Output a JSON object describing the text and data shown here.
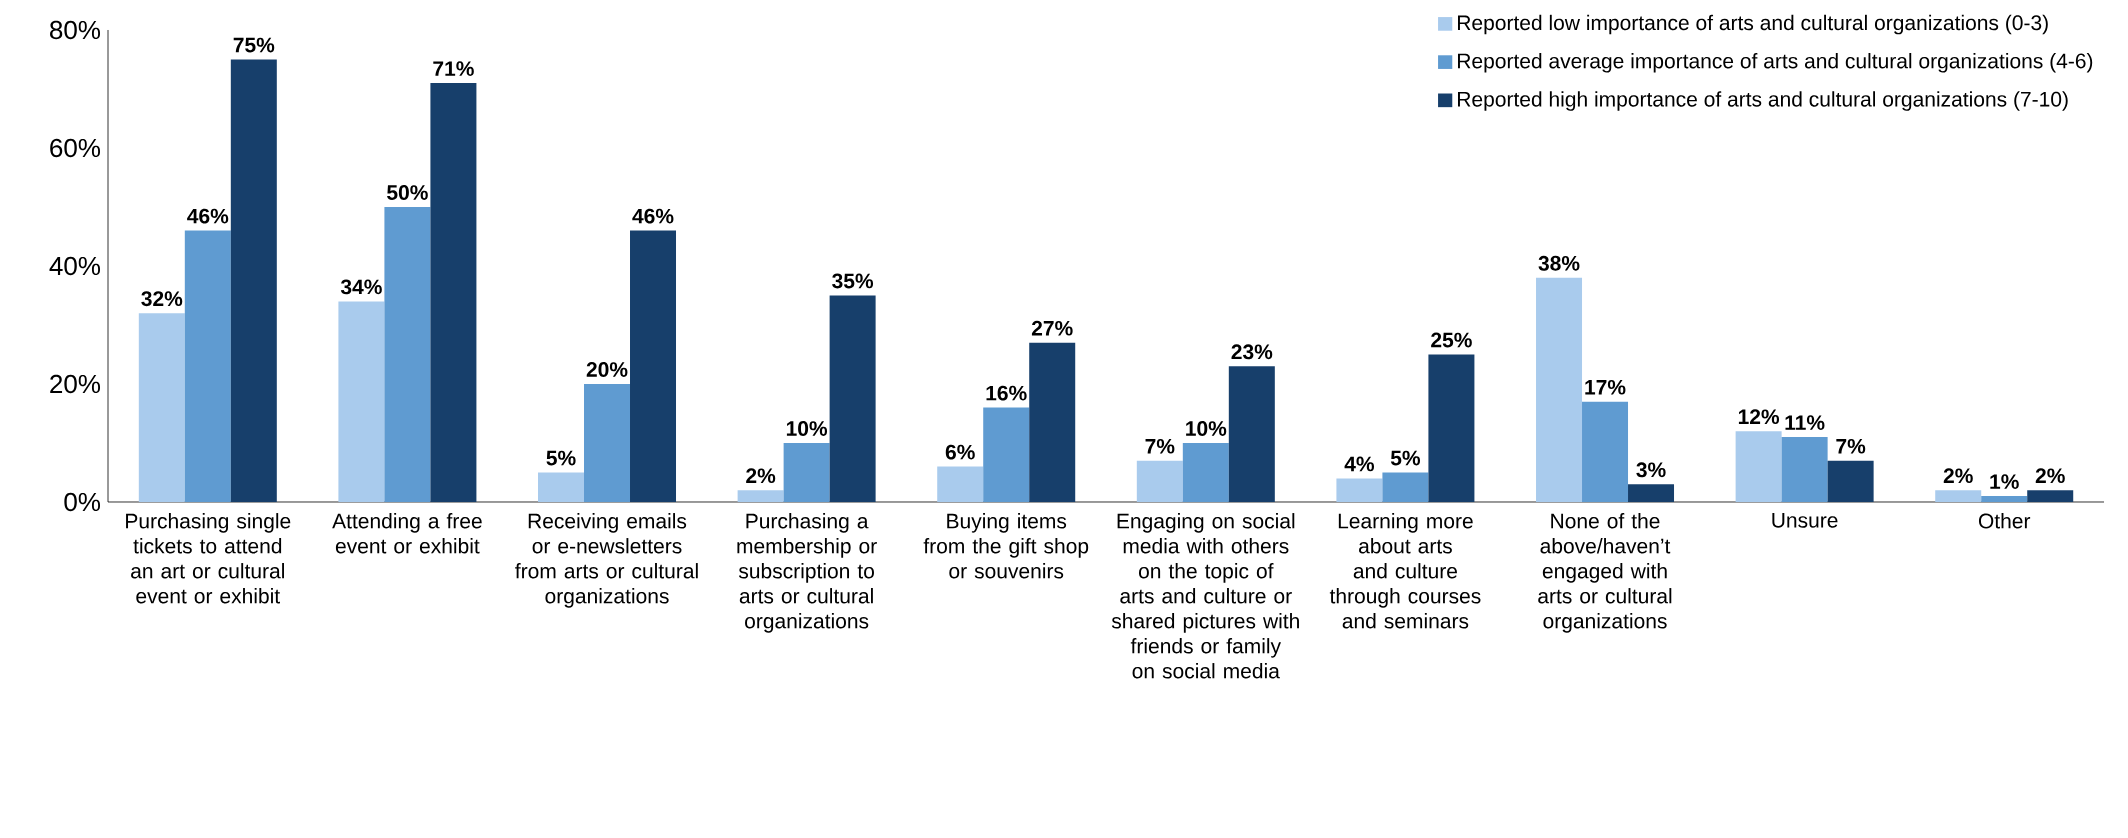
{
  "chart_data": {
    "type": "bar",
    "categories": [
      "Purchasing single tickets to attend an art or cultural event or exhibit",
      "Attending a free event or exhibit",
      "Receiving emails or e-newsletters from arts or cultural organizations",
      "Purchasing a membership or subscription to arts or cultural organizations",
      "Buying items from the gift shop or souvenirs",
      "Engaging on social media with others on the topic of arts and culture or shared pictures with friends or family on social media",
      "Learning more about arts and culture through courses and seminars",
      "None of the above/haven’t engaged with arts or cultural organizations",
      "Unsure",
      "Other"
    ],
    "series": [
      {
        "name": "Reported low importance of arts and cultural organizations (0-3)",
        "color": "#a9cbed",
        "values": [
          32,
          34,
          5,
          2,
          6,
          7,
          4,
          38,
          12,
          2
        ],
        "value_labels": [
          "32%",
          "34%",
          "5%",
          "2%",
          "6%",
          "7%",
          "4%",
          "38%",
          "12%",
          "2%"
        ]
      },
      {
        "name": "Reported average importance of arts and cultural organizations (4-6)",
        "color": "#5f9bd1",
        "values": [
          46,
          50,
          20,
          10,
          16,
          10,
          5,
          17,
          11,
          1
        ],
        "value_labels": [
          "46%",
          "50%",
          "20%",
          "10%",
          "16%",
          "10%",
          "5%",
          "17%",
          "11%",
          "1%"
        ]
      },
      {
        "name": "Reported high importance of arts and cultural organizations (7-10)",
        "color": "#173f6b",
        "values": [
          75,
          71,
          46,
          35,
          27,
          23,
          25,
          3,
          7,
          2
        ],
        "value_labels": [
          "75%",
          "71%",
          "46%",
          "35%",
          "27%",
          "23%",
          "25%",
          "3%",
          "7%",
          "2%"
        ]
      }
    ],
    "ylim": [
      0,
      80
    ],
    "yticks": [
      {
        "value": 0,
        "label": "0%"
      },
      {
        "value": 20,
        "label": "20%"
      },
      {
        "value": 40,
        "label": "40%"
      },
      {
        "value": 60,
        "label": "60%"
      },
      {
        "value": 80,
        "label": "80%"
      }
    ],
    "grid": false,
    "legend": "top right"
  }
}
